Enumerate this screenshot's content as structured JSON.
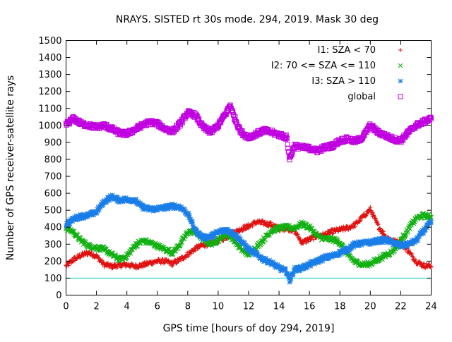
{
  "chart_data": {
    "type": "scatter",
    "title": "NRAYS. SISTED rt 30s mode. 294, 2019. Mask 30 deg",
    "xlabel": "GPS time [hours of doy 294, 2019]",
    "ylabel": "Number of GPS receiver-satellite rays",
    "xlim": [
      0,
      24
    ],
    "ylim": [
      0,
      1500
    ],
    "x_ticks": [
      "0",
      "2",
      "4",
      "6",
      "8",
      "10",
      "12",
      "14",
      "16",
      "18",
      "20",
      "22",
      "24"
    ],
    "y_ticks": [
      "0",
      "100",
      "200",
      "300",
      "400",
      "500",
      "600",
      "700",
      "800",
      "900",
      "1000",
      "1100",
      "1200",
      "1300",
      "1400",
      "1500"
    ],
    "legend_position": "top-right",
    "reference_line": {
      "y": 100,
      "color": "#00cccc"
    },
    "series": [
      {
        "name": "I1: SZA < 70",
        "marker": "+",
        "color": "#e01010",
        "points": [
          [
            0,
            170
          ],
          [
            0.5,
            210
          ],
          [
            1,
            235
          ],
          [
            1.5,
            250
          ],
          [
            2,
            230
          ],
          [
            2.5,
            180
          ],
          [
            3,
            170
          ],
          [
            3.5,
            175
          ],
          [
            4,
            180
          ],
          [
            4.5,
            170
          ],
          [
            5,
            175
          ],
          [
            5.5,
            190
          ],
          [
            6,
            200
          ],
          [
            6.5,
            200
          ],
          [
            7,
            185
          ],
          [
            7.5,
            210
          ],
          [
            8,
            240
          ],
          [
            8.5,
            275
          ],
          [
            9,
            295
          ],
          [
            9.5,
            305
          ],
          [
            10,
            320
          ],
          [
            10.5,
            340
          ],
          [
            11,
            365
          ],
          [
            11.5,
            390
          ],
          [
            12,
            405
          ],
          [
            12.5,
            430
          ],
          [
            13,
            425
          ],
          [
            13.5,
            415
          ],
          [
            14,
            390
          ],
          [
            14.5,
            395
          ],
          [
            15,
            380
          ],
          [
            15.5,
            310
          ],
          [
            16,
            330
          ],
          [
            16.5,
            350
          ],
          [
            17,
            355
          ],
          [
            17.5,
            375
          ],
          [
            18,
            385
          ],
          [
            18.5,
            395
          ],
          [
            19,
            415
          ],
          [
            19.5,
            460
          ],
          [
            20,
            505
          ],
          [
            20.5,
            410
          ],
          [
            21,
            345
          ],
          [
            21.5,
            320
          ],
          [
            22,
            310
          ],
          [
            22.5,
            260
          ],
          [
            23,
            200
          ],
          [
            23.5,
            175
          ],
          [
            24,
            170
          ]
        ]
      },
      {
        "name": "I2: 70 <= SZA <= 110",
        "marker": "x",
        "color": "#10b010",
        "points": [
          [
            0,
            400
          ],
          [
            0.5,
            370
          ],
          [
            1,
            320
          ],
          [
            1.5,
            290
          ],
          [
            2,
            280
          ],
          [
            2.5,
            270
          ],
          [
            3,
            240
          ],
          [
            3.5,
            210
          ],
          [
            4,
            230
          ],
          [
            4.5,
            290
          ],
          [
            5,
            320
          ],
          [
            5.5,
            310
          ],
          [
            6,
            290
          ],
          [
            6.5,
            270
          ],
          [
            7,
            250
          ],
          [
            7.5,
            300
          ],
          [
            8,
            370
          ],
          [
            8.5,
            375
          ],
          [
            9,
            330
          ],
          [
            9.5,
            300
          ],
          [
            10,
            325
          ],
          [
            10.5,
            360
          ],
          [
            11,
            330
          ],
          [
            11.5,
            270
          ],
          [
            12,
            240
          ],
          [
            12.5,
            280
          ],
          [
            13,
            330
          ],
          [
            13.5,
            380
          ],
          [
            14,
            395
          ],
          [
            14.5,
            400
          ],
          [
            15,
            395
          ],
          [
            15.5,
            420
          ],
          [
            16,
            400
          ],
          [
            16.5,
            350
          ],
          [
            17,
            330
          ],
          [
            17.5,
            330
          ],
          [
            18,
            310
          ],
          [
            18.5,
            240
          ],
          [
            19,
            195
          ],
          [
            19.5,
            180
          ],
          [
            20,
            185
          ],
          [
            20.5,
            210
          ],
          [
            21,
            235
          ],
          [
            21.5,
            260
          ],
          [
            22,
            320
          ],
          [
            22.5,
            390
          ],
          [
            23,
            450
          ],
          [
            23.5,
            470
          ],
          [
            24,
            460
          ]
        ]
      },
      {
        "name": "I3: SZA > 110",
        "marker": "*",
        "color": "#1a7ee8",
        "points": [
          [
            0,
            415
          ],
          [
            0.5,
            450
          ],
          [
            1,
            465
          ],
          [
            1.5,
            470
          ],
          [
            2,
            490
          ],
          [
            2.5,
            550
          ],
          [
            3,
            580
          ],
          [
            3.5,
            560
          ],
          [
            4,
            565
          ],
          [
            4.5,
            560
          ],
          [
            5,
            520
          ],
          [
            5.5,
            505
          ],
          [
            6,
            510
          ],
          [
            6.5,
            515
          ],
          [
            7,
            525
          ],
          [
            7.5,
            520
          ],
          [
            8,
            480
          ],
          [
            8.5,
            380
          ],
          [
            9,
            340
          ],
          [
            9.5,
            345
          ],
          [
            10,
            370
          ],
          [
            10.5,
            385
          ],
          [
            11,
            365
          ],
          [
            11.5,
            320
          ],
          [
            12,
            270
          ],
          [
            12.5,
            240
          ],
          [
            13,
            210
          ],
          [
            13.5,
            190
          ],
          [
            14,
            160
          ],
          [
            14.5,
            140
          ],
          [
            14.7,
            85
          ],
          [
            15,
            150
          ],
          [
            15.5,
            160
          ],
          [
            16,
            180
          ],
          [
            16.5,
            200
          ],
          [
            17,
            220
          ],
          [
            17.5,
            230
          ],
          [
            18,
            250
          ],
          [
            18.5,
            270
          ],
          [
            19,
            300
          ],
          [
            19.5,
            305
          ],
          [
            20,
            310
          ],
          [
            20.5,
            320
          ],
          [
            21,
            325
          ],
          [
            21.5,
            310
          ],
          [
            22,
            290
          ],
          [
            22.5,
            300
          ],
          [
            23,
            320
          ],
          [
            23.5,
            380
          ],
          [
            24,
            430
          ]
        ]
      },
      {
        "name": "global",
        "marker": "square",
        "color": "#c000e0",
        "points": [
          [
            0,
            1005
          ],
          [
            0.5,
            1040
          ],
          [
            1,
            1010
          ],
          [
            1.5,
            1000
          ],
          [
            2,
            990
          ],
          [
            2.5,
            1000
          ],
          [
            3,
            980
          ],
          [
            3.5,
            955
          ],
          [
            4,
            950
          ],
          [
            4.5,
            975
          ],
          [
            5,
            1000
          ],
          [
            5.5,
            1020
          ],
          [
            6,
            1010
          ],
          [
            6.5,
            980
          ],
          [
            7,
            965
          ],
          [
            7.5,
            1010
          ],
          [
            8,
            1075
          ],
          [
            8.5,
            1060
          ],
          [
            9,
            990
          ],
          [
            9.5,
            960
          ],
          [
            10,
            1000
          ],
          [
            10.5,
            1070
          ],
          [
            10.8,
            1120
          ],
          [
            11,
            1060
          ],
          [
            11.5,
            960
          ],
          [
            12,
            930
          ],
          [
            12.5,
            950
          ],
          [
            13,
            970
          ],
          [
            13.5,
            960
          ],
          [
            14,
            945
          ],
          [
            14.5,
            930
          ],
          [
            14.7,
            800
          ],
          [
            15,
            880
          ],
          [
            15.5,
            870
          ],
          [
            16,
            865
          ],
          [
            16.5,
            850
          ],
          [
            17,
            870
          ],
          [
            17.5,
            880
          ],
          [
            18,
            910
          ],
          [
            18.5,
            920
          ],
          [
            19,
            905
          ],
          [
            19.5,
            930
          ],
          [
            20,
            1000
          ],
          [
            20.5,
            960
          ],
          [
            21,
            940
          ],
          [
            21.5,
            920
          ],
          [
            22,
            910
          ],
          [
            22.5,
            960
          ],
          [
            23,
            1000
          ],
          [
            23.5,
            1020
          ],
          [
            24,
            1040
          ]
        ]
      }
    ]
  }
}
